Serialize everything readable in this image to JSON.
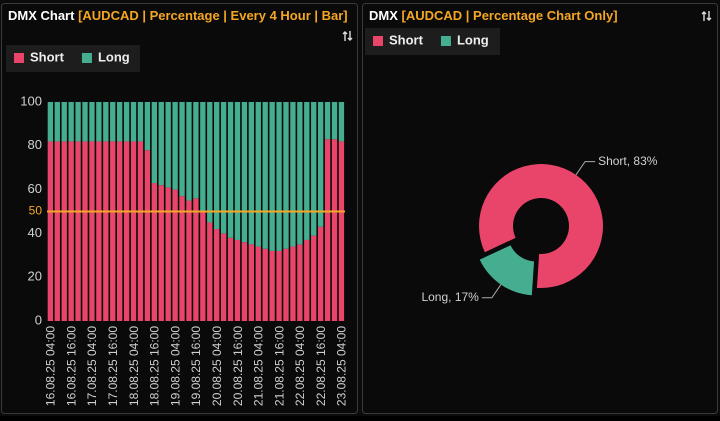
{
  "chart_data": [
    {
      "type": "bar",
      "stacked": true,
      "title": "DMX Chart",
      "subtitle": "[AUDCAD | Percentage | Every 4 Hour | Bar]",
      "categories": [
        "16.08.25 04:00",
        null,
        null,
        "16.08.25 16:00",
        null,
        null,
        "17.08.25 04:00",
        null,
        null,
        "17.08.25 16:00",
        null,
        null,
        "18.08.25 04:00",
        null,
        null,
        "18.08.25 16:00",
        null,
        null,
        "19.08.25 04:00",
        null,
        null,
        "19.08.25 16:00",
        null,
        null,
        "20.08.25 04:00",
        null,
        null,
        "20.08.25 16:00",
        null,
        null,
        "21.08.25 04:00",
        null,
        null,
        "21.08.25 16:00",
        null,
        null,
        "22.08.25 04:00",
        null,
        null,
        "22.08.25 16:00",
        null,
        null,
        "23.08.25 04:00"
      ],
      "series": [
        {
          "name": "Short",
          "color": "#e9456a",
          "values": [
            82,
            82,
            82,
            82,
            82,
            82,
            82,
            82,
            82,
            82,
            82,
            82,
            82,
            82,
            78,
            63,
            62,
            61,
            60,
            57,
            55,
            56,
            50,
            45,
            42,
            40,
            38,
            37,
            36,
            35,
            34,
            33,
            32,
            32,
            33,
            34,
            35,
            37,
            39,
            43,
            83,
            83,
            82
          ]
        },
        {
          "name": "Long",
          "color": "#45ae90",
          "values": [
            18,
            18,
            18,
            18,
            18,
            18,
            18,
            18,
            18,
            18,
            18,
            18,
            18,
            18,
            22,
            37,
            38,
            39,
            40,
            43,
            45,
            44,
            50,
            55,
            58,
            60,
            62,
            63,
            64,
            65,
            66,
            67,
            68,
            68,
            67,
            66,
            65,
            63,
            61,
            57,
            17,
            17,
            18
          ]
        }
      ],
      "ylim": [
        0,
        100
      ],
      "yticks": [
        0,
        20,
        40,
        60,
        80,
        100
      ],
      "reference_line": {
        "value": 50,
        "color": "#f5a623"
      }
    },
    {
      "type": "pie",
      "title": "DMX",
      "subtitle": "[AUDCAD | Percentage Chart Only]",
      "categories": [
        "Short",
        "Long"
      ],
      "values": [
        83,
        17
      ],
      "value_labels": [
        "Short, 83%",
        "Long, 17%"
      ],
      "colors": [
        "#e9456a",
        "#45ae90"
      ]
    }
  ]
}
